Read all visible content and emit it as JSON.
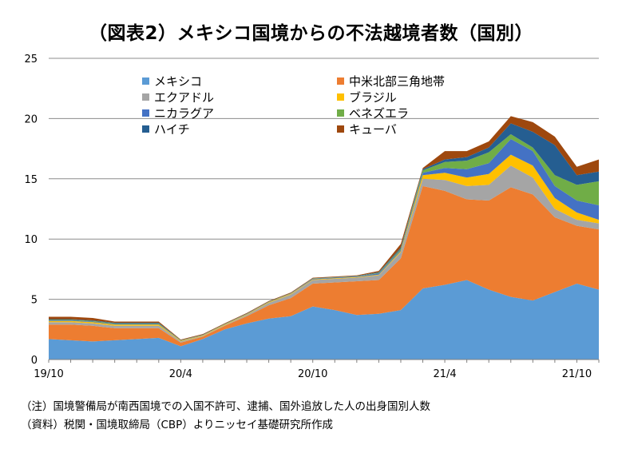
{
  "chart_data": {
    "type": "area",
    "stacked": true,
    "title": "（図表2）メキシコ国境からの不法越境者数（国別）",
    "xlabel": "",
    "ylabel": "",
    "ylim": [
      0,
      25
    ],
    "y_ticks": [
      0,
      5,
      10,
      15,
      20,
      25
    ],
    "grid": true,
    "legend_placement": "top-left",
    "x": [
      "19/10",
      "19/11",
      "19/12",
      "20/1",
      "20/2",
      "20/3",
      "20/4",
      "20/5",
      "20/6",
      "20/7",
      "20/8",
      "20/9",
      "20/10",
      "20/11",
      "20/12",
      "21/1",
      "21/2",
      "21/3",
      "21/4",
      "21/5",
      "21/6",
      "21/7",
      "21/8",
      "21/9",
      "21/10",
      "21/11"
    ],
    "x_tick_labels": [
      "19/10",
      "20/4",
      "20/10",
      "21/4",
      "21/10"
    ],
    "series": [
      {
        "name": "メキシコ",
        "color": "#5B9BD5",
        "values": [
          1.7,
          1.6,
          1.5,
          1.6,
          1.7,
          1.8,
          1.1,
          1.7,
          2.5,
          3.0,
          3.4,
          3.6,
          4.4,
          4.1,
          3.7,
          3.8,
          4.1,
          5.9,
          6.2,
          6.6,
          5.8,
          5.2,
          4.9,
          5.6,
          6.3,
          5.8
        ]
      },
      {
        "name": "中米北部三角地帯",
        "color": "#ED7D31",
        "values": [
          1.2,
          1.3,
          1.3,
          1.0,
          0.9,
          0.8,
          0.3,
          0.2,
          0.3,
          0.6,
          1.1,
          1.5,
          1.9,
          2.3,
          2.8,
          2.8,
          4.3,
          8.5,
          7.8,
          6.7,
          7.4,
          9.1,
          8.8,
          6.2,
          4.8,
          5.0
        ]
      },
      {
        "name": "エクアドル",
        "color": "#A5A5A5",
        "values": [
          0.2,
          0.2,
          0.2,
          0.2,
          0.2,
          0.2,
          0.1,
          0.05,
          0.05,
          0.1,
          0.2,
          0.3,
          0.3,
          0.3,
          0.3,
          0.4,
          0.5,
          0.6,
          0.9,
          1.1,
          1.3,
          1.8,
          1.4,
          0.7,
          0.5,
          0.5
        ]
      },
      {
        "name": "ブラジル",
        "color": "#FFC000",
        "values": [
          0.1,
          0.1,
          0.1,
          0.1,
          0.1,
          0.1,
          0.05,
          0.05,
          0.05,
          0.05,
          0.05,
          0.05,
          0.05,
          0.05,
          0.05,
          0.05,
          0.1,
          0.3,
          0.6,
          0.7,
          0.9,
          0.9,
          1.0,
          0.9,
          0.6,
          0.3
        ]
      },
      {
        "name": "ニカラグア",
        "color": "#4472C4",
        "values": [
          0.05,
          0.05,
          0.05,
          0.05,
          0.05,
          0.05,
          0.02,
          0.02,
          0.02,
          0.02,
          0.02,
          0.02,
          0.05,
          0.05,
          0.05,
          0.1,
          0.1,
          0.2,
          0.4,
          0.7,
          0.9,
          1.3,
          1.2,
          1.0,
          1.0,
          1.2
        ]
      },
      {
        "name": "ベネズエラ",
        "color": "#70AD47",
        "values": [
          0.05,
          0.05,
          0.05,
          0.05,
          0.05,
          0.05,
          0.02,
          0.02,
          0.02,
          0.02,
          0.02,
          0.02,
          0.02,
          0.02,
          0.02,
          0.05,
          0.1,
          0.2,
          0.5,
          0.7,
          0.9,
          0.4,
          0.3,
          0.9,
          1.3,
          2.0
        ]
      },
      {
        "name": "ハイチ",
        "color": "#255E91",
        "values": [
          0.05,
          0.05,
          0.05,
          0.05,
          0.05,
          0.05,
          0.02,
          0.02,
          0.02,
          0.02,
          0.02,
          0.02,
          0.02,
          0.02,
          0.02,
          0.05,
          0.1,
          0.1,
          0.2,
          0.3,
          0.4,
          0.9,
          1.3,
          2.5,
          0.8,
          0.8
        ]
      },
      {
        "name": "キューバ",
        "color": "#9E480E",
        "values": [
          0.2,
          0.2,
          0.2,
          0.1,
          0.1,
          0.1,
          0.05,
          0.05,
          0.05,
          0.05,
          0.05,
          0.05,
          0.05,
          0.05,
          0.05,
          0.1,
          0.3,
          0.1,
          0.7,
          0.5,
          0.5,
          0.6,
          0.8,
          0.7,
          0.7,
          1.0
        ]
      }
    ]
  },
  "notes": {
    "note": "（注）国境警備局が南西国境での入国不許可、逮捕、国外追放した人の出身国別人数",
    "source": "（資料）税関・国境取締局（CBP）よりニッセイ基礎研究所作成"
  }
}
